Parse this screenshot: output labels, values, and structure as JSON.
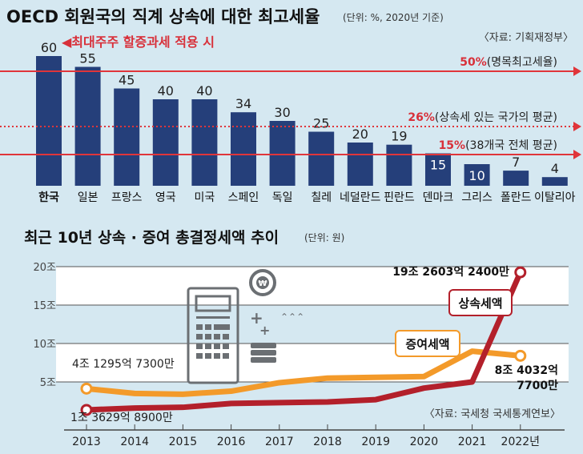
{
  "colors": {
    "background": "#d5e8f1",
    "bar": "#253f7a",
    "reference_line": "#e0353a",
    "inheritance_line": "#b3202b",
    "gift_line": "#f39a2a"
  },
  "chart_data": [
    {
      "type": "bar",
      "title": "OECD 회원국의 직계 상속에 대한 최고세율",
      "subtitle": "(단위: %, 2020년 기준)",
      "source": "〈자료: 기획재정부〉",
      "annotation": "◀최대주주 할증과세 적용 시",
      "categories": [
        "한국",
        "일본",
        "프랑스",
        "영국",
        "미국",
        "스페인",
        "독일",
        "칠레",
        "네덜란드",
        "핀란드",
        "덴마크",
        "그리스",
        "폴란드",
        "이탈리아"
      ],
      "values": [
        60,
        55,
        45,
        40,
        40,
        34,
        30,
        25,
        20,
        19,
        15,
        10,
        7,
        4
      ],
      "value_labels": [
        "60",
        "55",
        "45",
        "40",
        "40",
        "34",
        "30",
        "25",
        "20",
        "19",
        "15",
        "10",
        "7",
        "4"
      ],
      "ylim": [
        0,
        62
      ],
      "reference_lines": [
        {
          "value": 50,
          "pct": "50%",
          "text": "(명목최고세율)",
          "style": "solid"
        },
        {
          "value": 26,
          "pct": "26%",
          "text": "(상속세 있는 국가의 평균)",
          "style": "dotted"
        },
        {
          "value": 15,
          "pct": "15%",
          "text": "(38개국 전체 평균)",
          "style": "solid"
        }
      ]
    },
    {
      "type": "line",
      "title": "최근 10년 상속 · 증여 총결정세액 추이",
      "subtitle": "(단위: 원)",
      "source": "〈자료: 국세청 국세통계연보〉",
      "x": [
        "2013",
        "2014",
        "2015",
        "2016",
        "2017",
        "2018",
        "2019",
        "2020",
        "2021",
        "2022년"
      ],
      "y_ticks": [
        "5조",
        "10조",
        "15조",
        "20조"
      ],
      "y_tick_values": [
        5,
        10,
        15,
        20
      ],
      "ylim": [
        0,
        20
      ],
      "grid": true,
      "series": [
        {
          "name": "상속세액",
          "values": [
            1.36,
            1.6,
            1.7,
            2.2,
            2.3,
            2.4,
            2.7,
            4.2,
            5.0,
            19.26
          ],
          "start_label": "1조 3629억 8900만",
          "end_label": "19조 2603억 2400만"
        },
        {
          "name": "증여세액",
          "values": [
            4.13,
            3.5,
            3.4,
            3.8,
            4.9,
            5.5,
            5.6,
            5.7,
            9.0,
            8.4
          ],
          "start_label": "4조 1295억 7300만",
          "end_label_1": "8조 4032억",
          "end_label_2": "7700만"
        }
      ]
    }
  ]
}
